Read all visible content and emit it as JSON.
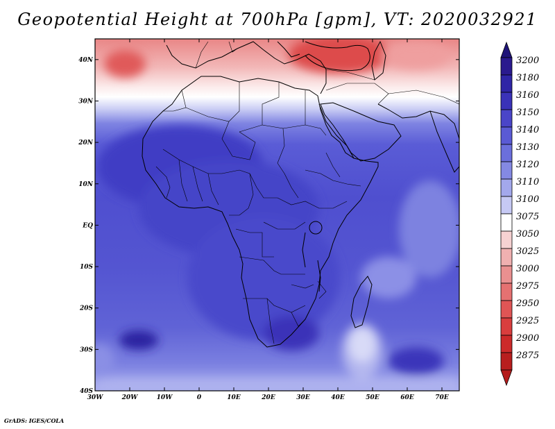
{
  "title": "Geopotential Height at 700hPa [gpm], VT: 2020032921",
  "credit": "GrADS: IGES/COLA",
  "map": {
    "lat_labels": [
      "40N",
      "30N",
      "20N",
      "10N",
      "EQ",
      "10S",
      "20S",
      "30S",
      "40S"
    ],
    "lon_labels": [
      "30W",
      "20W",
      "10W",
      "0",
      "10E",
      "20E",
      "30E",
      "40E",
      "50E",
      "60E",
      "70E"
    ],
    "lon_range": [
      -30,
      75
    ],
    "lat_range": [
      -40,
      45
    ]
  },
  "colorbar": {
    "labels": [
      "3200",
      "3180",
      "3160",
      "3150",
      "3140",
      "3130",
      "3120",
      "3110",
      "3100",
      "3075",
      "3050",
      "3025",
      "3000",
      "2975",
      "2950",
      "2925",
      "2900",
      "2875"
    ],
    "colors": [
      "#2a1a8e",
      "#2f25a6",
      "#3a32b8",
      "#4a45c8",
      "#5a5ad4",
      "#6b6fdc",
      "#8489e3",
      "#a3a8ec",
      "#c6c9f4",
      "#ffffff",
      "#f6d2d2",
      "#f0b0b0",
      "#ea9090",
      "#e57171",
      "#e05555",
      "#d93e3e",
      "#cc2a2a",
      "#b81e1e"
    ],
    "top_arrow_color": "#1f1478",
    "bottom_arrow_color": "#b51c1c"
  }
}
